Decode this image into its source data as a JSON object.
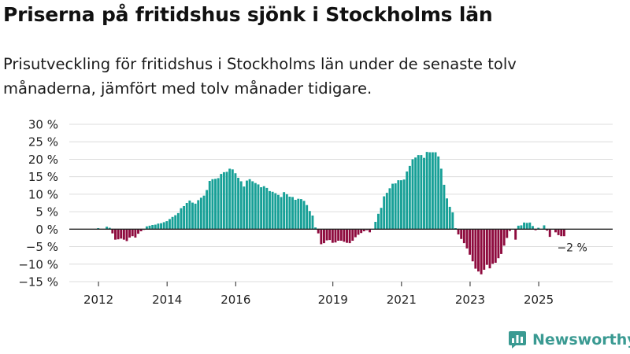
{
  "header": {
    "title": "Priserna på fritidshus sjönk i Stockholms län",
    "subtitle": "Prisutveckling för fritidshus i Stockholms län under de senaste tolv månaderna, jämfört med tolv månader tidigare."
  },
  "brand": {
    "name": "Newsworthy"
  },
  "colors": {
    "positive": "#17a097",
    "negative": "#8e0b3e",
    "grid": "#dcdcdc",
    "axis": "#222222",
    "brand": "#3a9a92"
  },
  "chart_data": {
    "type": "bar",
    "title": "Priserna på fritidshus sjönk i Stockholms län",
    "subtitle": "Prisutveckling för fritidshus i Stockholms län under de senaste tolv månaderna, jämfört med tolv månader tidigare.",
    "xlabel": "",
    "ylabel": "",
    "unit": "%",
    "ylim": [
      -15,
      30
    ],
    "y_ticks": [
      30,
      25,
      20,
      15,
      10,
      5,
      0,
      -5,
      -10,
      -15
    ],
    "y_tick_labels": [
      "30 %",
      "25 %",
      "20 %",
      "15 %",
      "10 %",
      "5 %",
      "0 %",
      "−5 %",
      "−10 %",
      "−15 %"
    ],
    "x_ticks": [
      {
        "label": "2012",
        "index": 8
      },
      {
        "label": "2014",
        "index": 32
      },
      {
        "label": "2016",
        "index": 56
      },
      {
        "label": "2019",
        "index": 90
      },
      {
        "label": "2021",
        "index": 114
      },
      {
        "label": "2023",
        "index": 138
      },
      {
        "label": "2025",
        "index": 162
      }
    ],
    "grid": true,
    "legend": "none",
    "annotation": {
      "text": "−2 %",
      "index": 174
    },
    "bar_count": 176,
    "values": [
      0,
      0,
      0,
      0,
      0,
      0,
      0,
      0,
      0.3,
      0,
      0,
      0.7,
      0.4,
      -1.2,
      -3.0,
      -2.9,
      -2.7,
      -3.0,
      -3.4,
      -2.4,
      -2.0,
      -2.4,
      -1.3,
      -0.6,
      -0.2,
      0.8,
      1.0,
      1.2,
      1.3,
      1.6,
      1.7,
      2.0,
      2.3,
      2.9,
      3.5,
      4.0,
      4.6,
      6.0,
      6.6,
      7.5,
      8.2,
      7.6,
      7.3,
      8.3,
      9.0,
      9.6,
      11.2,
      13.8,
      14.3,
      14.4,
      14.6,
      15.8,
      16.3,
      16.4,
      17.3,
      17.1,
      16.0,
      14.7,
      13.7,
      12.2,
      13.9,
      14.3,
      13.7,
      13.2,
      12.8,
      12.0,
      12.3,
      11.8,
      10.9,
      10.7,
      10.3,
      9.8,
      9.2,
      10.6,
      10.0,
      9.3,
      9.2,
      8.4,
      8.7,
      8.6,
      8.1,
      6.9,
      5.2,
      3.9,
      0.5,
      -1.2,
      -4.3,
      -4.0,
      -3.2,
      -3.1,
      -3.9,
      -3.8,
      -3.3,
      -3.3,
      -3.6,
      -3.9,
      -4.0,
      -3.3,
      -2.3,
      -1.6,
      -1.1,
      -0.6,
      -0.3,
      -0.9,
      0,
      2.1,
      4.4,
      6.1,
      9.4,
      10.4,
      11.7,
      13.0,
      13.1,
      14.0,
      14.0,
      14.2,
      16.5,
      18.1,
      20.0,
      20.5,
      21.2,
      21.2,
      20.4,
      22.1,
      22.0,
      22.0,
      22.0,
      20.8,
      17.3,
      12.7,
      8.8,
      6.4,
      4.8,
      0.3,
      -1.5,
      -2.8,
      -4.0,
      -5.5,
      -7.3,
      -9.2,
      -11.3,
      -12.1,
      -12.9,
      -11.6,
      -10.2,
      -11.2,
      -9.9,
      -9.6,
      -8.3,
      -7.1,
      -4.7,
      -2.5,
      -0.5,
      0,
      -3.0,
      1.0,
      1.1,
      1.9,
      1.8,
      1.9,
      0.9,
      -0.3,
      0.4,
      0,
      1.1,
      -0.4,
      -2.2,
      0,
      -0.9,
      -1.7,
      -2.0,
      -2.0,
      0,
      0,
      0,
      0
    ]
  }
}
